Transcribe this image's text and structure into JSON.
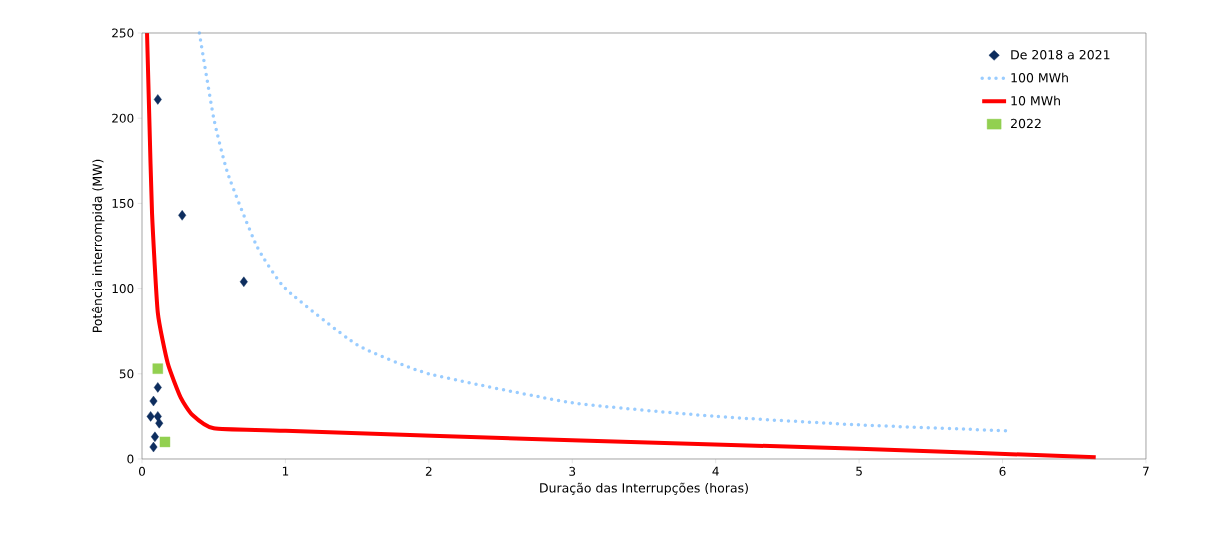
{
  "chart_data": {
    "type": "scatter",
    "xlabel": "Duração das Interrupções (horas)",
    "ylabel": "Potência interrompida (MW)",
    "xlim": [
      0,
      7
    ],
    "ylim": [
      0,
      250
    ],
    "xticks": [
      0,
      1,
      2,
      3,
      4,
      5,
      6,
      7
    ],
    "yticks": [
      0,
      50,
      100,
      150,
      200,
      250
    ],
    "grid": false,
    "legend": "top right",
    "series": [
      {
        "name": "De 2018 a 2021",
        "marker": "diamond",
        "color": "#0d2d5e",
        "x": [
          0.11,
          0.28,
          0.71,
          0.11,
          0.08,
          0.06,
          0.11,
          0.12,
          0.09,
          0.08
        ],
        "values": [
          211,
          143,
          104,
          42,
          34,
          25,
          25,
          21,
          13,
          7
        ]
      },
      {
        "name": "100 MWh",
        "type": "line",
        "line_style": "dotted",
        "marker": "none",
        "color": "#99ccff",
        "x": [
          0.4,
          0.5,
          0.6,
          0.8,
          1,
          1.5,
          2,
          3,
          4,
          5,
          6.05
        ],
        "values": [
          250,
          200,
          167,
          125,
          100,
          67,
          50,
          33,
          25,
          20,
          16.5
        ]
      },
      {
        "name": "10 MWh",
        "type": "line",
        "line_style": "solid",
        "marker": "none",
        "color": "#ff0000",
        "x": [
          0.035,
          0.05,
          0.07,
          0.11,
          0.18,
          0.27,
          0.35,
          0.5,
          1,
          3,
          5,
          6.65
        ],
        "values": [
          250,
          203,
          144,
          86,
          56,
          36,
          26,
          18,
          16.5,
          11,
          6,
          1
        ]
      },
      {
        "name": "2022",
        "marker": "square",
        "color": "#92d050",
        "x": [
          0.11,
          0.16
        ],
        "values": [
          53,
          10
        ]
      }
    ]
  }
}
